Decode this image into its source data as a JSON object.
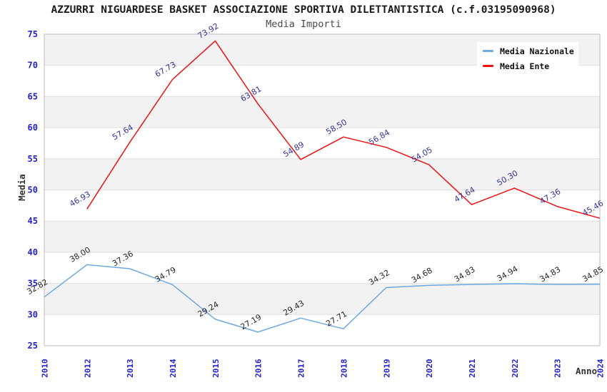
{
  "header": {
    "title": "AZZURRI NIGUARDESE BASKET ASSOCIAZIONE SPORTIVA DILETTANTISTICA (c.f.03195090968)",
    "subtitle": "Media Importi"
  },
  "legend": {
    "items": [
      {
        "label": "Media Nazionale",
        "color": "#6FA9E2"
      },
      {
        "label": "Media Ente",
        "color": "#EE1111"
      }
    ]
  },
  "axes": {
    "y_label": "Media",
    "x_label": "Anno"
  },
  "chart_data": {
    "type": "line",
    "title": "AZZURRI NIGUARDESE BASKET ASSOCIAZIONE SPORTIVA DILETTANTISTICA (c.f.03195090968)",
    "subtitle": "Media Importi",
    "categories": [
      "2010",
      "2012",
      "2013",
      "2014",
      "2015",
      "2016",
      "2017",
      "2018",
      "2019",
      "2020",
      "2021",
      "2022",
      "2023",
      "2024"
    ],
    "series": [
      {
        "name": "Media Nazionale",
        "color": "#6FA9E2",
        "label_color": "#262626",
        "values": [
          32.82,
          38.0,
          37.36,
          34.79,
          29.24,
          27.19,
          29.43,
          27.71,
          34.32,
          34.68,
          34.83,
          34.94,
          34.83,
          34.85
        ]
      },
      {
        "name": "Media Ente",
        "color": "#EE1111",
        "label_color": "#333399",
        "values": [
          null,
          46.93,
          57.64,
          67.73,
          73.92,
          63.81,
          54.89,
          58.5,
          56.84,
          54.05,
          47.64,
          50.3,
          47.36,
          45.46
        ]
      }
    ],
    "xlabel": "Anno",
    "ylabel": "Media",
    "ylim": [
      25,
      75
    ],
    "yticks": [
      25,
      30,
      35,
      40,
      45,
      50,
      55,
      60,
      65,
      70,
      75
    ],
    "grid": true,
    "legend_position": "top-right",
    "band_colors": [
      "#F2F2F2",
      "#FFFFFF"
    ],
    "tick_color": "#2222CC",
    "gridline_color": "#DFDFDF",
    "border_color": "#BEBEBE"
  }
}
